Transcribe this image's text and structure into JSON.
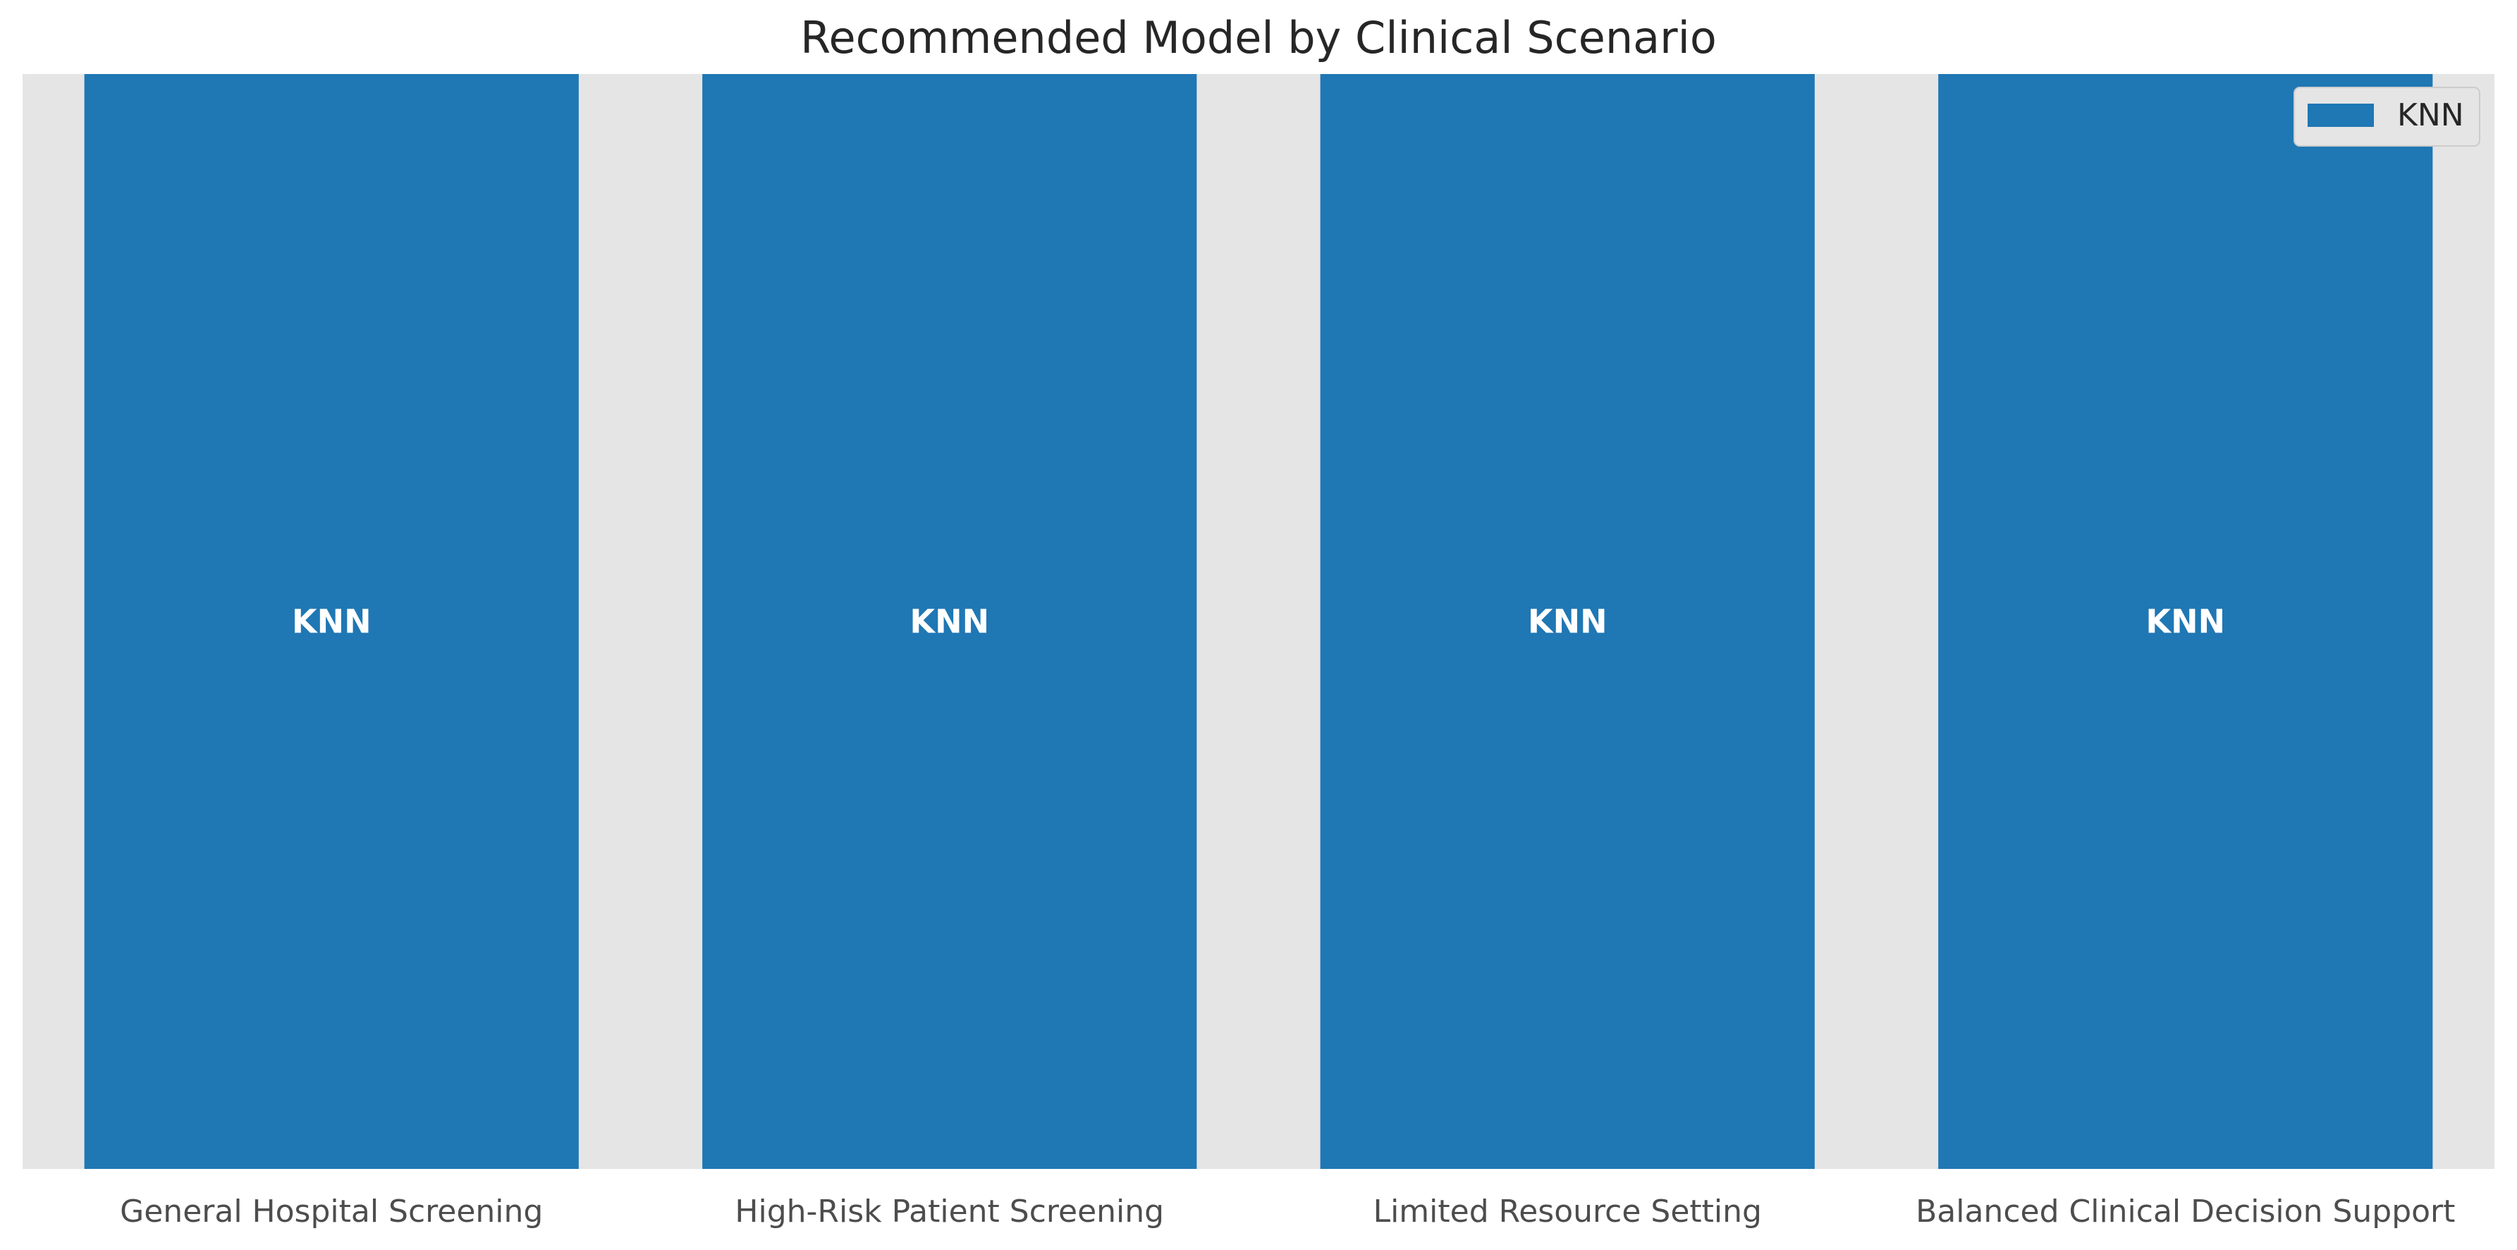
{
  "chart_data": {
    "type": "bar",
    "title": "Recommended Model by Clinical Scenario",
    "xlabel": "",
    "ylabel": "",
    "categories": [
      "General Hospital Screening",
      "High-Risk Patient Screening",
      "Limited Resource Setting",
      "Balanced Clinical Decision Support"
    ],
    "series": [
      {
        "name": "KNN",
        "values": [
          1,
          1,
          1,
          1
        ],
        "color": "#1f77b4"
      }
    ],
    "bar_labels": [
      "KNN",
      "KNN",
      "KNN",
      "KNN"
    ],
    "ylim": [
      0,
      1
    ],
    "grid": false,
    "legend_position": "top-right",
    "background_color": "#e5e5e5"
  }
}
